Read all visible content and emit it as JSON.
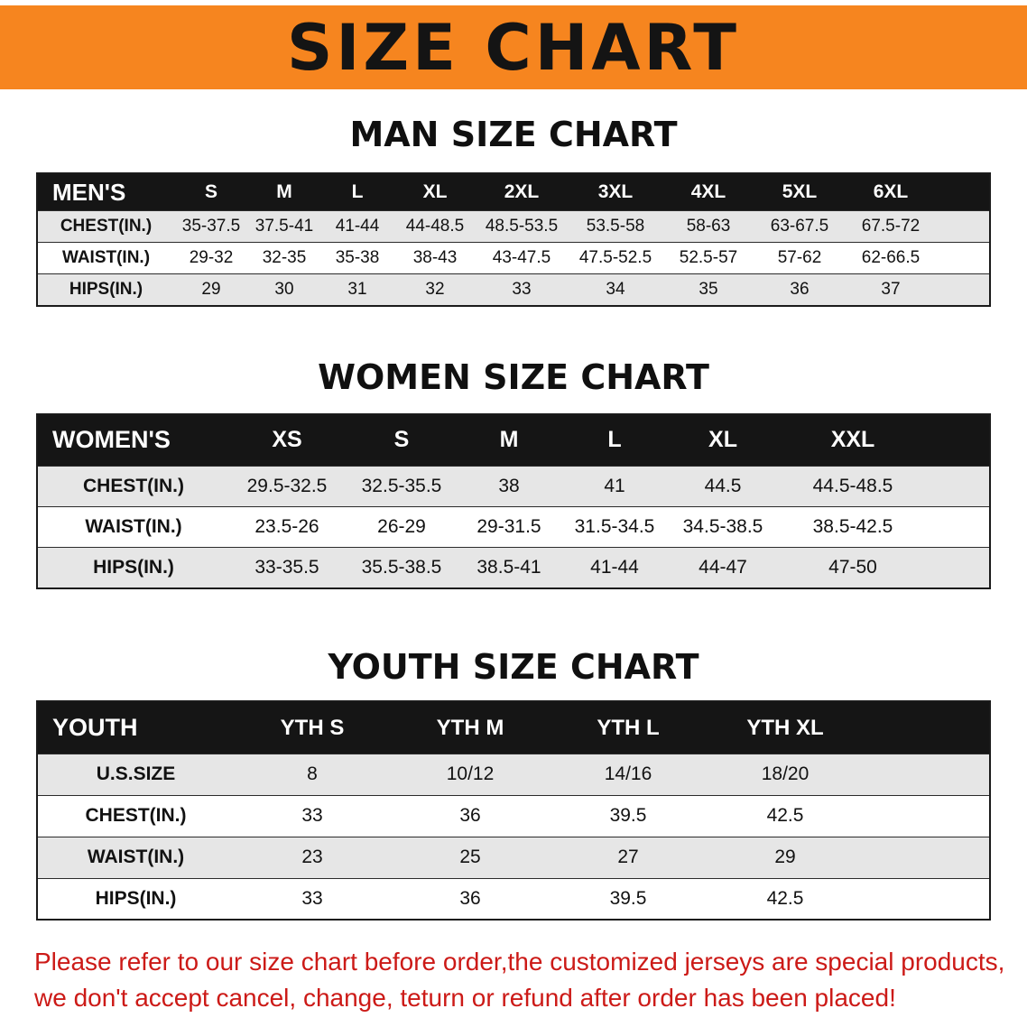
{
  "banner": {
    "title": "SIZE CHART"
  },
  "colors": {
    "banner_bg": "#F6851F",
    "banner_text": "#141414",
    "table_header_bg": "#151515",
    "table_header_text": "#FFFFFF",
    "row_alt_bg": "#E6E6E6",
    "disclaimer_text": "#CC1A17"
  },
  "sections": [
    {
      "heading": "MAN SIZE CHART",
      "table": {
        "header_label": "MEN'S",
        "columns": [
          "S",
          "M",
          "L",
          "XL",
          "2XL",
          "3XL",
          "4XL",
          "5XL",
          "6XL"
        ],
        "rows": [
          {
            "label": "CHEST(IN.)",
            "values": [
              "35-37.5",
              "37.5-41",
              "41-44",
              "44-48.5",
              "48.5-53.5",
              "53.5-58",
              "58-63",
              "63-67.5",
              "67.5-72"
            ]
          },
          {
            "label": "WAIST(IN.)",
            "values": [
              "29-32",
              "32-35",
              "35-38",
              "38-43",
              "43-47.5",
              "47.5-52.5",
              "52.5-57",
              "57-62",
              "62-66.5"
            ]
          },
          {
            "label": "HIPS(IN.)",
            "values": [
              "29",
              "30",
              "31",
              "32",
              "33",
              "34",
              "35",
              "36",
              "37"
            ]
          }
        ]
      }
    },
    {
      "heading": "WOMEN SIZE CHART",
      "table": {
        "header_label": "WOMEN'S",
        "columns": [
          "XS",
          "S",
          "M",
          "L",
          "XL",
          "XXL"
        ],
        "rows": [
          {
            "label": "CHEST(IN.)",
            "values": [
              "29.5-32.5",
              "32.5-35.5",
              "38",
              "41",
              "44.5",
              "44.5-48.5"
            ]
          },
          {
            "label": "WAIST(IN.)",
            "values": [
              "23.5-26",
              "26-29",
              "29-31.5",
              "31.5-34.5",
              "34.5-38.5",
              "38.5-42.5"
            ]
          },
          {
            "label": "HIPS(IN.)",
            "values": [
              "33-35.5",
              "35.5-38.5",
              "38.5-41",
              "41-44",
              "44-47",
              "47-50"
            ]
          }
        ]
      }
    },
    {
      "heading": "YOUTH SIZE CHART",
      "table": {
        "header_label": "YOUTH",
        "columns": [
          "YTH S",
          "YTH M",
          "YTH L",
          "YTH XL"
        ],
        "rows": [
          {
            "label": "U.S.SIZE",
            "values": [
              "8",
              "10/12",
              "14/16",
              "18/20"
            ]
          },
          {
            "label": "CHEST(IN.)",
            "values": [
              "33",
              "36",
              "39.5",
              "42.5"
            ]
          },
          {
            "label": "WAIST(IN.)",
            "values": [
              "23",
              "25",
              "27",
              "29"
            ]
          },
          {
            "label": "HIPS(IN.)",
            "values": [
              "33",
              "36",
              "39.5",
              "42.5"
            ]
          }
        ]
      }
    }
  ],
  "disclaimer": {
    "line1": "Please refer to our size chart before order,the customized jerseys are special products,",
    "line2": "we don't accept cancel, change, teturn or refund after order has been placed!"
  }
}
